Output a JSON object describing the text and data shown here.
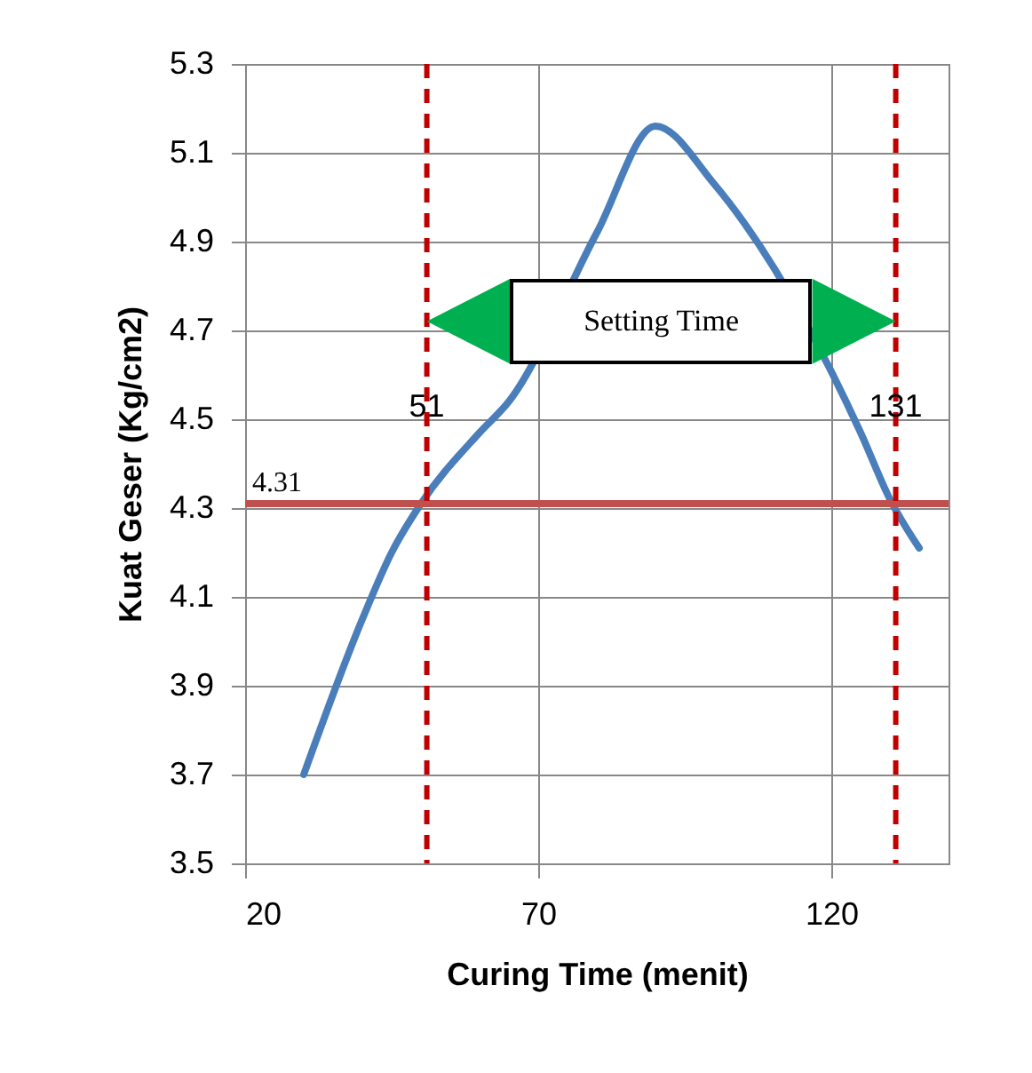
{
  "chart_data": {
    "type": "line",
    "xlabel": "Curing Time (menit)",
    "ylabel": "Kuat Geser (Kg/cm2)",
    "x": [
      30,
      40,
      45,
      50,
      60,
      65,
      80,
      90,
      100,
      125,
      130,
      135
    ],
    "series": [
      {
        "color": "#4a7ebb",
        "values": [
          3.7,
          4.05,
          4.2,
          4.31,
          4.47,
          4.54,
          4.92,
          5.16,
          5.03,
          4.47,
          4.32,
          4.21
        ]
      }
    ],
    "xlim": [
      20,
      140
    ],
    "xticks": [
      20,
      70,
      120
    ],
    "ylim": [
      3.5,
      5.3
    ],
    "yticks": [
      3.5,
      3.7,
      3.9,
      4.1,
      4.3,
      4.5,
      4.7,
      4.9,
      5.1,
      5.3
    ],
    "grid": true,
    "marker": "none",
    "line_style": "solid",
    "ref_lines": [
      {
        "axis": "y",
        "value": 4.31,
        "label": "4.31",
        "color": "#c0504d",
        "line_style": "solid"
      },
      {
        "axis": "x",
        "value": 51,
        "label": "51",
        "color": "#c00000",
        "line_style": "dashed"
      },
      {
        "axis": "x",
        "value": 131,
        "label": "131",
        "color": "#c00000",
        "line_style": "dashed"
      }
    ],
    "annotations": [
      "Setting Time"
    ]
  }
}
